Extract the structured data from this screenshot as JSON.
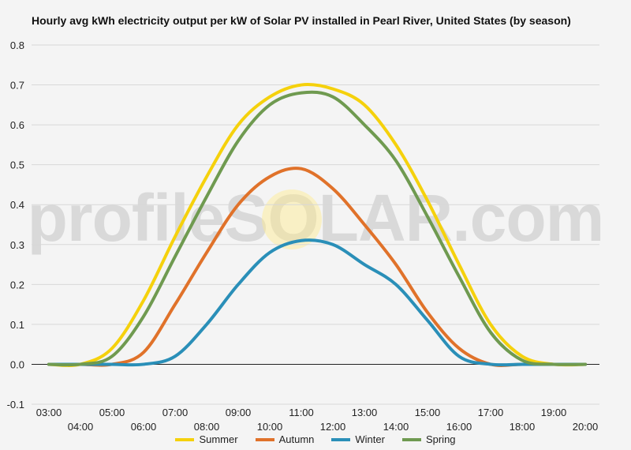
{
  "chart_data": {
    "type": "line",
    "title": "Hourly avg kWh electricity output per kW of Solar PV installed in Pearl River, United States (by season)",
    "xlabel": "",
    "ylabel": "",
    "x": [
      "03:00",
      "04:00",
      "05:00",
      "06:00",
      "07:00",
      "08:00",
      "09:00",
      "10:00",
      "11:00",
      "12:00",
      "13:00",
      "14:00",
      "15:00",
      "16:00",
      "17:00",
      "18:00",
      "19:00",
      "20:00"
    ],
    "ylim": [
      -0.1,
      0.8
    ],
    "yticks": [
      "0.8",
      "0.7",
      "0.6",
      "0.5",
      "0.4",
      "0.3",
      "0.2",
      "0.1",
      "0.0",
      "-0.1"
    ],
    "grid": true,
    "legend_position": "bottom",
    "series": [
      {
        "name": "Summer",
        "color": "#f5d10c",
        "values": [
          0.0,
          0.0,
          0.04,
          0.16,
          0.32,
          0.47,
          0.6,
          0.67,
          0.7,
          0.69,
          0.65,
          0.55,
          0.41,
          0.25,
          0.1,
          0.02,
          0.0,
          0.0
        ]
      },
      {
        "name": "Autumn",
        "color": "#e0722a",
        "values": [
          0.0,
          0.0,
          0.0,
          0.03,
          0.15,
          0.28,
          0.4,
          0.47,
          0.49,
          0.44,
          0.35,
          0.25,
          0.13,
          0.04,
          0.0,
          0.0,
          0.0,
          0.0
        ]
      },
      {
        "name": "Winter",
        "color": "#2a8fb8",
        "values": [
          0.0,
          0.0,
          0.0,
          0.0,
          0.02,
          0.1,
          0.2,
          0.28,
          0.31,
          0.3,
          0.25,
          0.2,
          0.11,
          0.02,
          0.0,
          0.0,
          0.0,
          0.0
        ]
      },
      {
        "name": "Spring",
        "color": "#6f9a50",
        "values": [
          0.0,
          0.0,
          0.02,
          0.12,
          0.27,
          0.42,
          0.56,
          0.65,
          0.68,
          0.67,
          0.6,
          0.51,
          0.37,
          0.22,
          0.08,
          0.01,
          0.0,
          0.0
        ]
      }
    ]
  },
  "watermark": "profileSOLAR.com"
}
